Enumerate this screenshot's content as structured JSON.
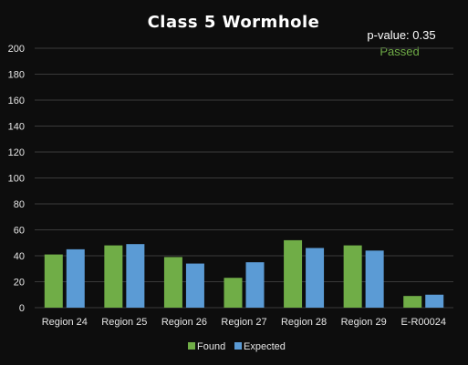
{
  "chart_data": {
    "type": "bar",
    "title": "Class 5 Wormhole",
    "categories": [
      "Region 24",
      "Region 25",
      "Region 26",
      "Region 27",
      "Region 28",
      "Region 29",
      "E-R00024"
    ],
    "series": [
      {
        "name": "Found",
        "color": "#70ad47",
        "values": [
          41,
          48,
          39,
          23,
          52,
          48,
          9
        ]
      },
      {
        "name": "Expected",
        "color": "#5b9bd5",
        "values": [
          45,
          49,
          34,
          35,
          46,
          44,
          10
        ]
      }
    ],
    "ylim": [
      0,
      200
    ],
    "yticks": [
      0,
      20,
      40,
      60,
      80,
      100,
      120,
      140,
      160,
      180,
      200
    ],
    "grid": true,
    "legend": "bottom"
  },
  "annotation": {
    "pvalue_text": "p-value: 0.35",
    "status_text": "Passed",
    "status_color": "#70ad47"
  },
  "colors": {
    "background": "#0d0d0d",
    "gridline": "#3a3a3a"
  }
}
